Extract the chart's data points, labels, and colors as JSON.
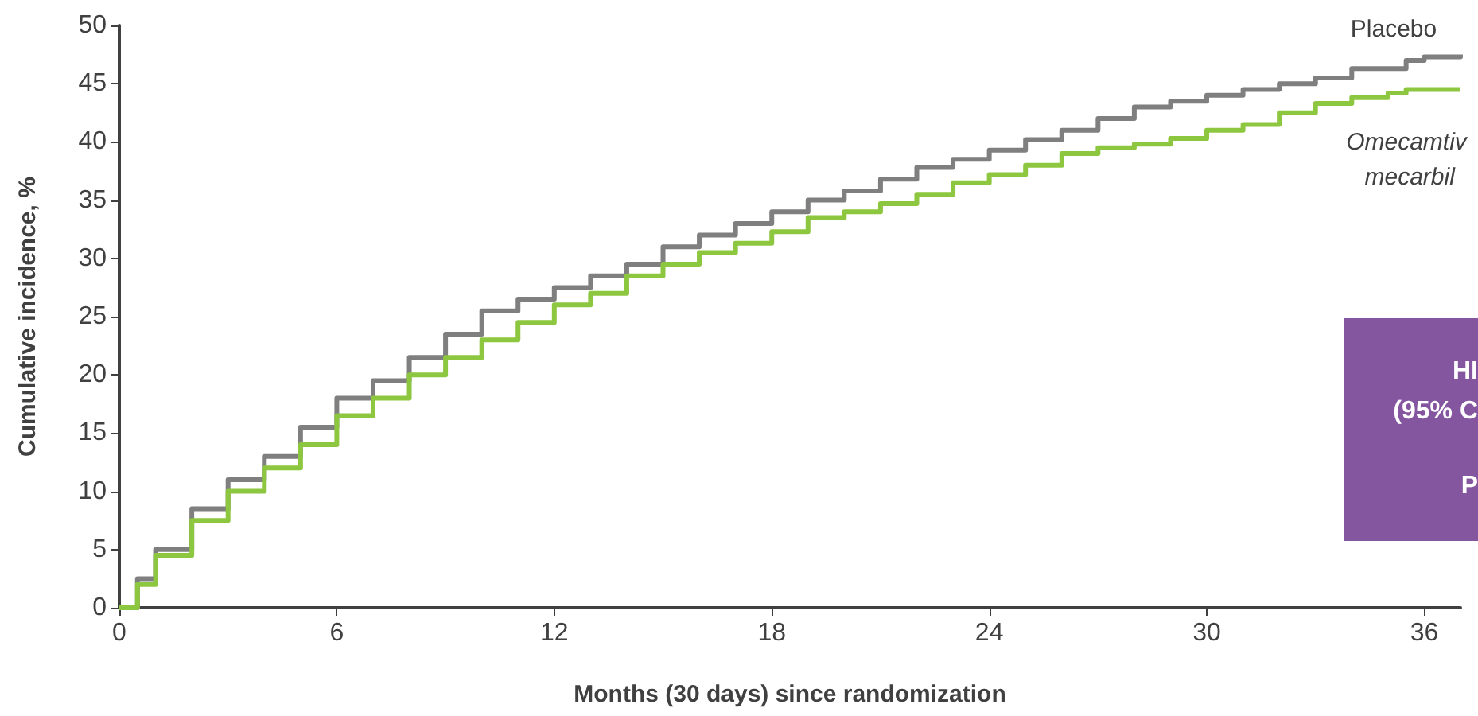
{
  "chart_data": {
    "type": "step",
    "xlabel": "Months (30 days) since randomization",
    "ylabel": "Cumulative incidence, %",
    "x": [
      0,
      0.5,
      1,
      2,
      3,
      4,
      5,
      6,
      7,
      8,
      9,
      10,
      11,
      12,
      13,
      14,
      15,
      16,
      17,
      18,
      19,
      20,
      21,
      22,
      23,
      24,
      25,
      26,
      27,
      28,
      29,
      30,
      31,
      32,
      33,
      34,
      35,
      35.5,
      36,
      37
    ],
    "series": [
      {
        "name": "Placebo",
        "color": "#7f7f7f",
        "values": [
          0,
          2.5,
          5,
          8.5,
          11,
          13,
          15.5,
          18,
          19.5,
          21.5,
          23.5,
          25.5,
          26.5,
          27.5,
          28.5,
          29.5,
          31,
          32,
          33,
          34,
          35,
          35.8,
          36.8,
          37.8,
          38.5,
          39.3,
          40.2,
          41,
          42,
          43,
          43.5,
          44,
          44.5,
          45,
          45.5,
          46.3,
          46.3,
          47,
          47.3,
          47.5
        ]
      },
      {
        "name": "Omecamtiv mecarbil",
        "color": "#8dc63f",
        "values": [
          0,
          2,
          4.5,
          7.5,
          10,
          12,
          14,
          16.5,
          18,
          20,
          21.5,
          23,
          24.5,
          26,
          27,
          28.5,
          29.5,
          30.5,
          31.3,
          32.3,
          33.5,
          34,
          34.7,
          35.5,
          36.5,
          37.2,
          38,
          39,
          39.5,
          39.8,
          40.3,
          41,
          41.5,
          42.5,
          43.3,
          43.8,
          44.2,
          44.5,
          44.5,
          44.5
        ]
      }
    ],
    "xlim": [
      0,
      37
    ],
    "xticks": [
      0,
      6,
      12,
      18,
      24,
      30,
      36
    ],
    "ylim": [
      0,
      50
    ],
    "yticks": [
      0,
      5,
      10,
      15,
      20,
      25,
      30,
      35,
      40,
      45,
      50
    ],
    "grid": false,
    "legend": false,
    "marker": "none",
    "line_style": "solid",
    "annotations": [
      "HI",
      "(95% C",
      "P"
    ]
  }
}
